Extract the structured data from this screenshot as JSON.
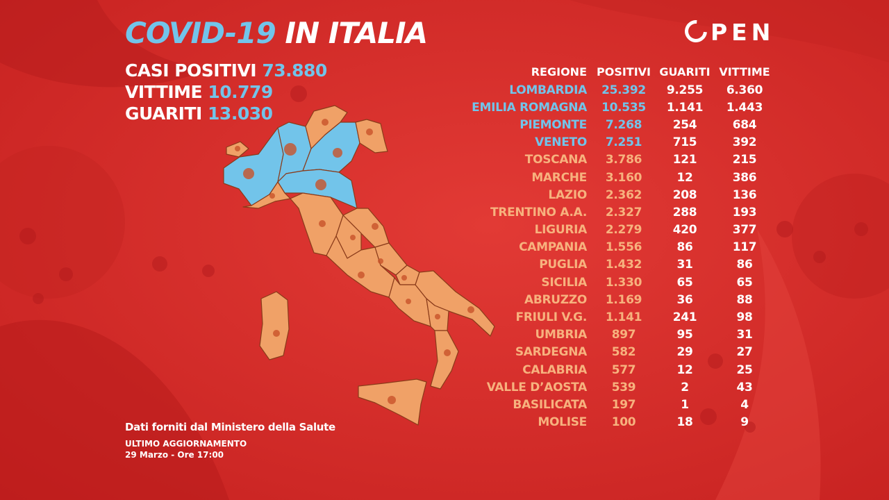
{
  "header": {
    "title_part1": "COVID-19",
    "title_part2": "IN ITALIA"
  },
  "summary": [
    {
      "label": "CASI POSITIVI",
      "value": "73.880"
    },
    {
      "label": "VITTIME",
      "value": "10.779"
    },
    {
      "label": "GUARITI",
      "value": "13.030"
    }
  ],
  "logo": {
    "text": "PEN"
  },
  "table": {
    "headers": [
      "REGIONE",
      "POSITIVI",
      "GUARITI",
      "VITTIME"
    ],
    "rows": [
      {
        "region": "LOMBARDIA",
        "positivi": "25.392",
        "guariti": "9.255",
        "vittime": "6.360",
        "highlight": true
      },
      {
        "region": "EMILIA ROMAGNA",
        "positivi": "10.535",
        "guariti": "1.141",
        "vittime": "1.443",
        "highlight": true
      },
      {
        "region": "PIEMONTE",
        "positivi": "7.268",
        "guariti": "254",
        "vittime": "684",
        "highlight": true
      },
      {
        "region": "VENETO",
        "positivi": "7.251",
        "guariti": "715",
        "vittime": "392",
        "highlight": true
      },
      {
        "region": "TOSCANA",
        "positivi": "3.786",
        "guariti": "121",
        "vittime": "215"
      },
      {
        "region": "MARCHE",
        "positivi": "3.160",
        "guariti": "12",
        "vittime": "386"
      },
      {
        "region": "LAZIO",
        "positivi": "2.362",
        "guariti": "208",
        "vittime": "136"
      },
      {
        "region": "TRENTINO A.A.",
        "positivi": "2.327",
        "guariti": "288",
        "vittime": "193"
      },
      {
        "region": "LIGURIA",
        "positivi": "2.279",
        "guariti": "420",
        "vittime": "377"
      },
      {
        "region": "CAMPANIA",
        "positivi": "1.556",
        "guariti": "86",
        "vittime": "117"
      },
      {
        "region": "PUGLIA",
        "positivi": "1.432",
        "guariti": "31",
        "vittime": "86"
      },
      {
        "region": "SICILIA",
        "positivi": "1.330",
        "guariti": "65",
        "vittime": "65"
      },
      {
        "region": "ABRUZZO",
        "positivi": "1.169",
        "guariti": "36",
        "vittime": "88"
      },
      {
        "region": "FRIULI V.G.",
        "positivi": "1.141",
        "guariti": "241",
        "vittime": "98"
      },
      {
        "region": "UMBRIA",
        "positivi": "897",
        "guariti": "95",
        "vittime": "31"
      },
      {
        "region": "SARDEGNA",
        "positivi": "582",
        "guariti": "29",
        "vittime": "27"
      },
      {
        "region": "CALABRIA",
        "positivi": "577",
        "guariti": "12",
        "vittime": "25"
      },
      {
        "region": "VALLE D’AOSTA",
        "positivi": "539",
        "guariti": "2",
        "vittime": "43"
      },
      {
        "region": "BASILICATA",
        "positivi": "197",
        "guariti": "1",
        "vittime": "4"
      },
      {
        "region": "MOLISE",
        "positivi": "100",
        "guariti": "18",
        "vittime": "9"
      }
    ]
  },
  "footer": {
    "source": "Dati forniti dal Ministero della Salute",
    "update_label": "ULTIMO AGGIORNAMENTO",
    "update_date": "29 Marzo - Ore 17:00"
  },
  "colors": {
    "background": "#d42a27",
    "highlight_blue": "#72c4ea",
    "region_orange": "#f0a167",
    "text_orange": "#f7b27e"
  }
}
